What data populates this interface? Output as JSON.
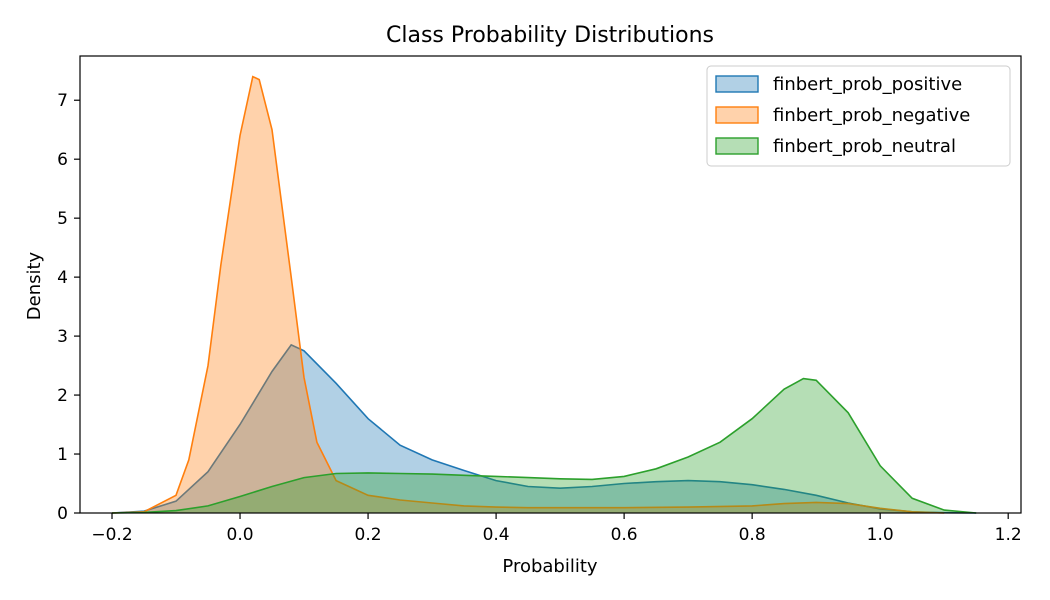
{
  "chart_data": {
    "type": "area",
    "title": "Class Probability Distributions",
    "xlabel": "Probability",
    "ylabel": "Density",
    "xlim": [
      -0.25,
      1.22
    ],
    "ylim": [
      0,
      7.75
    ],
    "xticks": [
      -0.2,
      0.0,
      0.2,
      0.4,
      0.6,
      0.8,
      1.0,
      1.2
    ],
    "xtick_labels": [
      "−0.2",
      "0.0",
      "0.2",
      "0.4",
      "0.6",
      "0.8",
      "1.0",
      "1.2"
    ],
    "yticks": [
      0,
      1,
      2,
      3,
      4,
      5,
      6,
      7
    ],
    "ytick_labels": [
      "0",
      "1",
      "2",
      "3",
      "4",
      "5",
      "6",
      "7"
    ],
    "grid": false,
    "legend_position": "top-right",
    "series": [
      {
        "name": "finbert_prob_positive",
        "color": "#1f77b4",
        "x": [
          -0.2,
          -0.15,
          -0.1,
          -0.05,
          0.0,
          0.05,
          0.08,
          0.1,
          0.15,
          0.2,
          0.25,
          0.3,
          0.35,
          0.4,
          0.45,
          0.5,
          0.55,
          0.6,
          0.65,
          0.7,
          0.75,
          0.8,
          0.85,
          0.9,
          0.95,
          1.0,
          1.05,
          1.1,
          1.15
        ],
        "values": [
          0.0,
          0.03,
          0.2,
          0.7,
          1.5,
          2.4,
          2.85,
          2.75,
          2.2,
          1.6,
          1.15,
          0.9,
          0.72,
          0.55,
          0.45,
          0.42,
          0.45,
          0.5,
          0.53,
          0.55,
          0.53,
          0.48,
          0.4,
          0.3,
          0.17,
          0.07,
          0.02,
          0.005,
          0.0
        ]
      },
      {
        "name": "finbert_prob_negative",
        "color": "#ff7f0e",
        "x": [
          -0.2,
          -0.15,
          -0.1,
          -0.08,
          -0.05,
          -0.03,
          0.0,
          0.02,
          0.03,
          0.05,
          0.08,
          0.1,
          0.12,
          0.15,
          0.2,
          0.25,
          0.3,
          0.35,
          0.4,
          0.45,
          0.5,
          0.6,
          0.7,
          0.8,
          0.85,
          0.9,
          0.95,
          1.0,
          1.05,
          1.1
        ],
        "values": [
          0.0,
          0.02,
          0.3,
          0.9,
          2.5,
          4.2,
          6.4,
          7.4,
          7.35,
          6.5,
          4.0,
          2.3,
          1.2,
          0.55,
          0.3,
          0.22,
          0.17,
          0.12,
          0.1,
          0.09,
          0.09,
          0.09,
          0.1,
          0.12,
          0.16,
          0.18,
          0.16,
          0.08,
          0.02,
          0.0
        ]
      },
      {
        "name": "finbert_prob_neutral",
        "color": "#2ca02c",
        "x": [
          -0.2,
          -0.15,
          -0.1,
          -0.05,
          0.0,
          0.05,
          0.1,
          0.15,
          0.2,
          0.25,
          0.3,
          0.35,
          0.4,
          0.45,
          0.5,
          0.55,
          0.6,
          0.65,
          0.7,
          0.75,
          0.8,
          0.85,
          0.88,
          0.9,
          0.95,
          1.0,
          1.05,
          1.1,
          1.15
        ],
        "values": [
          0.0,
          0.01,
          0.04,
          0.12,
          0.28,
          0.45,
          0.6,
          0.67,
          0.68,
          0.67,
          0.66,
          0.64,
          0.62,
          0.6,
          0.58,
          0.57,
          0.62,
          0.75,
          0.95,
          1.2,
          1.6,
          2.1,
          2.28,
          2.25,
          1.7,
          0.8,
          0.25,
          0.05,
          0.0
        ]
      }
    ]
  }
}
